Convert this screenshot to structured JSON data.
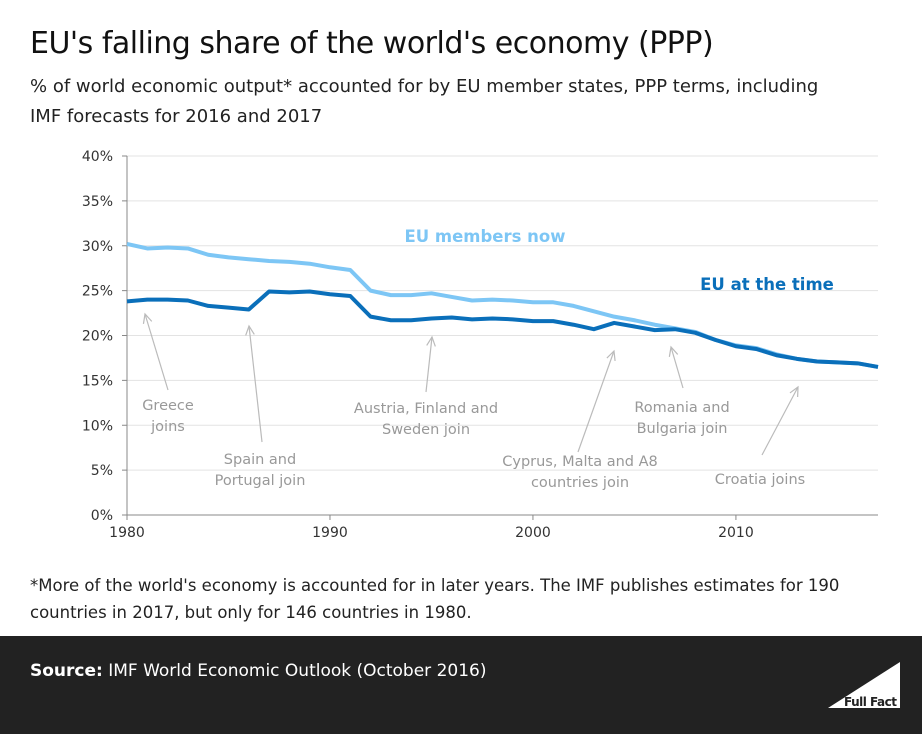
{
  "title": "EU's falling share of the world's economy (PPP)",
  "subtitle": "% of world economic output* accounted for by EU member states, PPP terms, including IMF forecasts for 2016 and 2017",
  "footnote": "*More of the world's economy is accounted for in later years.  The IMF publishes estimates for 190 countries in 2017, but only for 146 countries in 1980.",
  "source": {
    "label": "Source:",
    "text": " IMF World Economic Outlook (October 2016)"
  },
  "logo_text": "Full Fact",
  "chart_data": {
    "type": "line",
    "xlim": [
      1980,
      2017
    ],
    "ylim": [
      0,
      40
    ],
    "x_ticks": [
      "1980",
      "1990",
      "2000",
      "2010"
    ],
    "y_ticks": [
      "0%",
      "5%",
      "10%",
      "15%",
      "20%",
      "25%",
      "30%",
      "35%",
      "40%"
    ],
    "grid": "horizontal",
    "x": [
      1980,
      1981,
      1982,
      1983,
      1984,
      1985,
      1986,
      1987,
      1988,
      1989,
      1990,
      1991,
      1992,
      1993,
      1994,
      1995,
      1996,
      1997,
      1998,
      1999,
      2000,
      2001,
      2002,
      2003,
      2004,
      2005,
      2006,
      2007,
      2008,
      2009,
      2010,
      2011,
      2012,
      2013,
      2014,
      2015,
      2016,
      2017
    ],
    "series": [
      {
        "name": "EU members now",
        "color": "#7dc6f5",
        "values": [
          30.2,
          29.7,
          29.8,
          29.7,
          29.0,
          28.7,
          28.5,
          28.3,
          28.2,
          28.0,
          27.6,
          27.3,
          25.0,
          24.5,
          24.5,
          24.7,
          24.3,
          23.9,
          24.0,
          23.9,
          23.7,
          23.7,
          23.3,
          22.7,
          22.1,
          21.7,
          21.2,
          20.8,
          20.4,
          19.5,
          18.9,
          18.6,
          17.9,
          17.4,
          17.1,
          17.0,
          16.9,
          16.5
        ]
      },
      {
        "name": "EU at the time",
        "color": "#0a6fba",
        "values": [
          23.8,
          24.0,
          24.0,
          23.9,
          23.3,
          23.1,
          22.9,
          24.9,
          24.8,
          24.9,
          24.6,
          24.4,
          22.1,
          21.7,
          21.7,
          21.9,
          22.0,
          21.8,
          21.9,
          21.8,
          21.6,
          21.6,
          21.2,
          20.7,
          21.4,
          21.0,
          20.6,
          20.7,
          20.3,
          19.5,
          18.8,
          18.5,
          17.8,
          17.4,
          17.1,
          17.0,
          16.9,
          16.5
        ]
      }
    ],
    "annotations": [
      {
        "text": [
          "Greece",
          "joins"
        ],
        "year": 1981
      },
      {
        "text": [
          "Spain and",
          "Portugal join"
        ],
        "year": 1986
      },
      {
        "text": [
          "Austria, Finland and",
          "Sweden join"
        ],
        "year": 1995
      },
      {
        "text": [
          "Cyprus, Malta and A8",
          "countries join"
        ],
        "year": 2004
      },
      {
        "text": [
          "Romania and",
          "Bulgaria join"
        ],
        "year": 2007
      },
      {
        "text": [
          "Croatia joins"
        ],
        "year": 2013
      }
    ]
  }
}
